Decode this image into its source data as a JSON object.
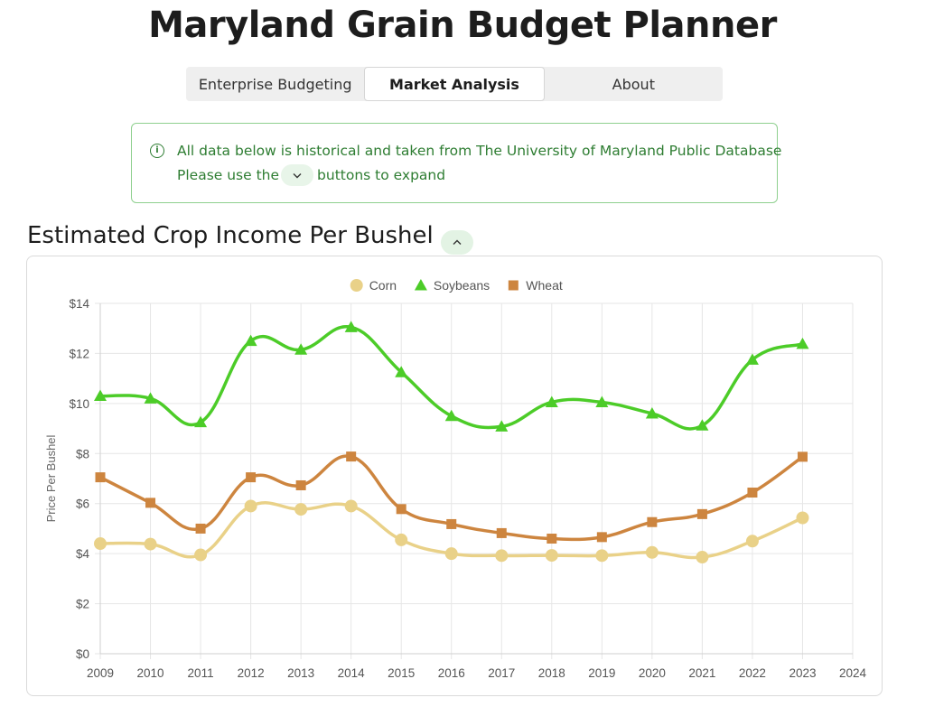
{
  "app": {
    "title": "Maryland Grain Budget Planner"
  },
  "tabs": [
    {
      "label": "Enterprise Budgeting",
      "active": false
    },
    {
      "label": "Market Analysis",
      "active": true
    },
    {
      "label": "About",
      "active": false
    }
  ],
  "info": {
    "icon": "info-circle-icon",
    "line1": "All data below is historical and taken from The University of Maryland Public Database",
    "line2_before": "Please use the",
    "line2_after": "buttons to expand",
    "chevron_icon": "chevron-down-icon"
  },
  "section": {
    "title": "Estimated Crop Income Per Bushel",
    "toggle_icon": "chevron-up-icon"
  },
  "colors": {
    "accent_green": "#2e7d32",
    "info_border": "#8fd08f"
  },
  "chart_data": {
    "type": "line",
    "title": "",
    "xlabel": "",
    "ylabel": "Price Per Bushel",
    "x": [
      2009,
      2010,
      2011,
      2012,
      2013,
      2014,
      2015,
      2016,
      2017,
      2018,
      2019,
      2020,
      2021,
      2022,
      2023
    ],
    "xlim": [
      2009,
      2024
    ],
    "x_ticks": [
      "2009",
      "2010",
      "2011",
      "2012",
      "2013",
      "2014",
      "2015",
      "2016",
      "2017",
      "2018",
      "2019",
      "2020",
      "2021",
      "2022",
      "2023",
      "2024"
    ],
    "ylim": [
      0,
      14
    ],
    "y_ticks": [
      "$0",
      "$2",
      "$4",
      "$6",
      "$8",
      "$10",
      "$12",
      "$14"
    ],
    "grid": true,
    "legend_position": "top-center",
    "series": [
      {
        "name": "Corn",
        "marker": "circle",
        "color": "#e9d188",
        "values": [
          4.4,
          4.38,
          3.95,
          5.9,
          5.77,
          5.9,
          4.55,
          4.0,
          3.92,
          3.93,
          3.92,
          4.05,
          3.86,
          4.5,
          5.43
        ]
      },
      {
        "name": "Soybeans",
        "marker": "triangle",
        "color": "#4ccc28",
        "values": [
          10.3,
          10.2,
          9.25,
          12.5,
          12.15,
          13.05,
          11.25,
          9.5,
          9.08,
          10.05,
          10.05,
          9.6,
          9.12,
          11.75,
          12.38
        ]
      },
      {
        "name": "Wheat",
        "marker": "square",
        "color": "#cd853f",
        "values": [
          7.05,
          6.03,
          5.0,
          7.05,
          6.73,
          7.88,
          5.78,
          5.18,
          4.82,
          4.6,
          4.66,
          5.26,
          5.58,
          6.44,
          7.87
        ]
      }
    ]
  }
}
